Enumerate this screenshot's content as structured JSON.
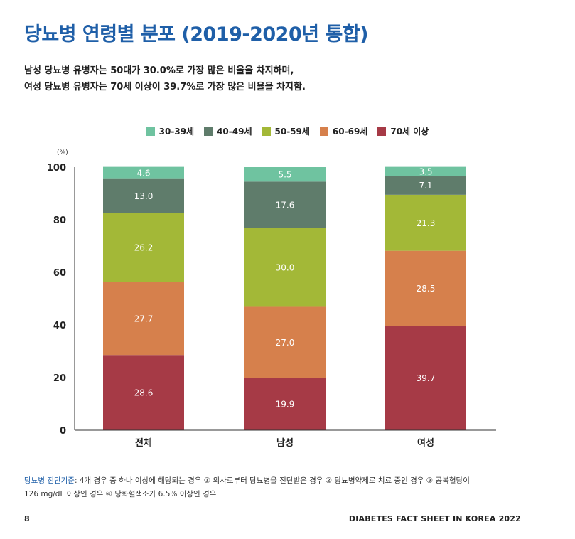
{
  "title": "당뇨병 연령별 분포 (2019-2020년 통합)",
  "subtitle": {
    "line1": "남성 당뇨병 유병자는 50대가 30.0%로 가장 많은 비율을 차지하며,",
    "line2": "여성 당뇨병 유병자는 70세 이상이 39.7%로 가장 많은 비율을 차지함."
  },
  "chart_data": {
    "type": "bar",
    "stacked": true,
    "categories": [
      "전체",
      "남성",
      "여성"
    ],
    "series": [
      {
        "name": "70세 이상",
        "color": "#a63a46",
        "values": [
          28.6,
          19.9,
          39.7
        ]
      },
      {
        "name": "60-69세",
        "color": "#d6804c",
        "values": [
          27.7,
          27.0,
          28.5
        ]
      },
      {
        "name": "50-59세",
        "color": "#a3b837",
        "values": [
          26.2,
          30.0,
          21.3
        ]
      },
      {
        "name": "40-49세",
        "color": "#5f7c6b",
        "values": [
          13.0,
          17.6,
          7.1
        ]
      },
      {
        "name": "30-39세",
        "color": "#6fc3a0",
        "values": [
          4.6,
          5.5,
          3.5
        ]
      }
    ],
    "legend_order": [
      "30-39세",
      "40-49세",
      "50-59세",
      "60-69세",
      "70세 이상"
    ],
    "legend_placement": "top-center",
    "ylabel": "(%)",
    "ylim": [
      0,
      100
    ],
    "yticks": [
      0,
      20,
      40,
      60,
      80,
      100
    ],
    "grid": false
  },
  "footnote": {
    "key": "당뇨병 진단기준",
    "line1": ": 4개 경우 중 하나 이상에 해당되는 경우 ① 의사로부터 당뇨병을 진단받은 경우 ② 당뇨병약제로 치료 중인 경우 ③ 공복혈당이",
    "line2": "126 mg/dL 이상인 경우 ④ 당화혈색소가 6.5% 이상인 경우"
  },
  "footer": {
    "page_number": "8",
    "publication": "DIABETES FACT SHEET IN KOREA 2022"
  }
}
